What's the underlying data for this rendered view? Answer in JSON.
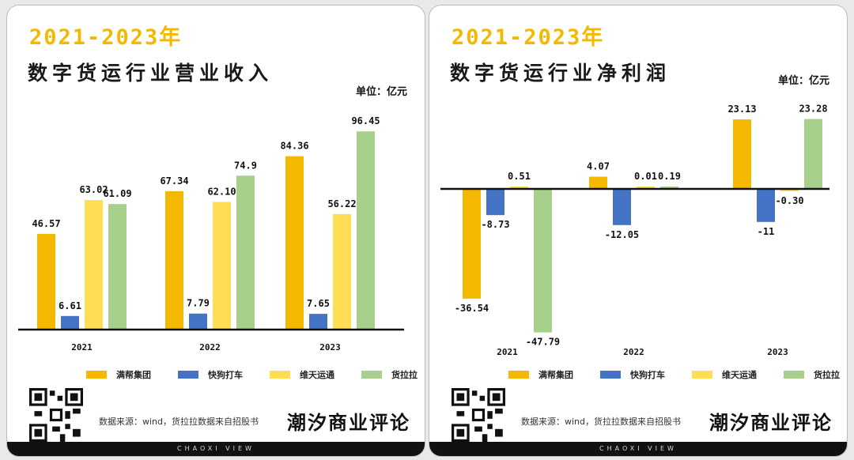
{
  "colors": {
    "accent": "#f5b800",
    "manbang": "#f5b800",
    "kuaigou": "#4472c4",
    "weitian": "#ffdd55",
    "huolala": "#a8d08d"
  },
  "panels": [
    {
      "headline": "2021-2023年",
      "title": "数字货运行业营业收入",
      "unit": "单位：亿元",
      "legend": [
        "满帮集团",
        "快狗打车",
        "维天运通",
        "货拉拉"
      ],
      "source": "数据来源：wind，货拉拉数据来自招股书",
      "brand": "潮汐商业评论",
      "strip": "CHAOXI VIEW",
      "chart_data": {
        "type": "bar",
        "title": "数字货运行业营业收入",
        "categories": [
          "2021",
          "2022",
          "2023"
        ],
        "series": [
          {
            "name": "满帮集团",
            "values": [
              46.57,
              67.34,
              84.36
            ],
            "labels": [
              "46.57",
              "67.34",
              "84.36"
            ]
          },
          {
            "name": "快狗打车",
            "values": [
              6.61,
              7.79,
              7.65
            ],
            "labels": [
              "6.61",
              "7.79",
              "7.65"
            ]
          },
          {
            "name": "维天运通",
            "values": [
              63.02,
              62.1,
              56.22
            ],
            "labels": [
              "63.02",
              "62.10",
              "56.22"
            ]
          },
          {
            "name": "货拉拉",
            "values": [
              61.09,
              74.9,
              96.45
            ],
            "labels": [
              "61.09",
              "74.9",
              "96.45"
            ]
          }
        ],
        "ylim": [
          0,
          100
        ],
        "grid": false,
        "legend_position": "bottom"
      }
    },
    {
      "headline": "2021-2023年",
      "title": "数字货运行业净利润",
      "unit": "单位：亿元",
      "legend": [
        "满帮集团",
        "快狗打车",
        "维天运通",
        "货拉拉"
      ],
      "source": "数据来源：wind，货拉拉数据来自招股书",
      "brand": "潮汐商业评论",
      "strip": "CHAOXI VIEW",
      "chart_data": {
        "type": "bar",
        "title": "数字货运行业净利润",
        "categories": [
          "2021",
          "2022",
          "2023"
        ],
        "series": [
          {
            "name": "满帮集团",
            "values": [
              -36.54,
              4.07,
              23.13
            ],
            "labels": [
              "-36.54",
              "4.07",
              "23.13"
            ]
          },
          {
            "name": "快狗打车",
            "values": [
              -8.73,
              -12.05,
              -11
            ],
            "labels": [
              "-8.73",
              "-12.05",
              "-11"
            ]
          },
          {
            "name": "维天运通",
            "values": [
              0.51,
              0.01,
              -0.3
            ],
            "labels": [
              "0.51",
              "0.01",
              "-0.30"
            ]
          },
          {
            "name": "货拉拉",
            "values": [
              -47.79,
              0.19,
              23.28
            ],
            "labels": [
              "-47.79",
              "0.19",
              "23.28"
            ]
          }
        ],
        "ylim": [
          -50,
          30
        ],
        "grid": false,
        "legend_position": "bottom"
      }
    }
  ]
}
